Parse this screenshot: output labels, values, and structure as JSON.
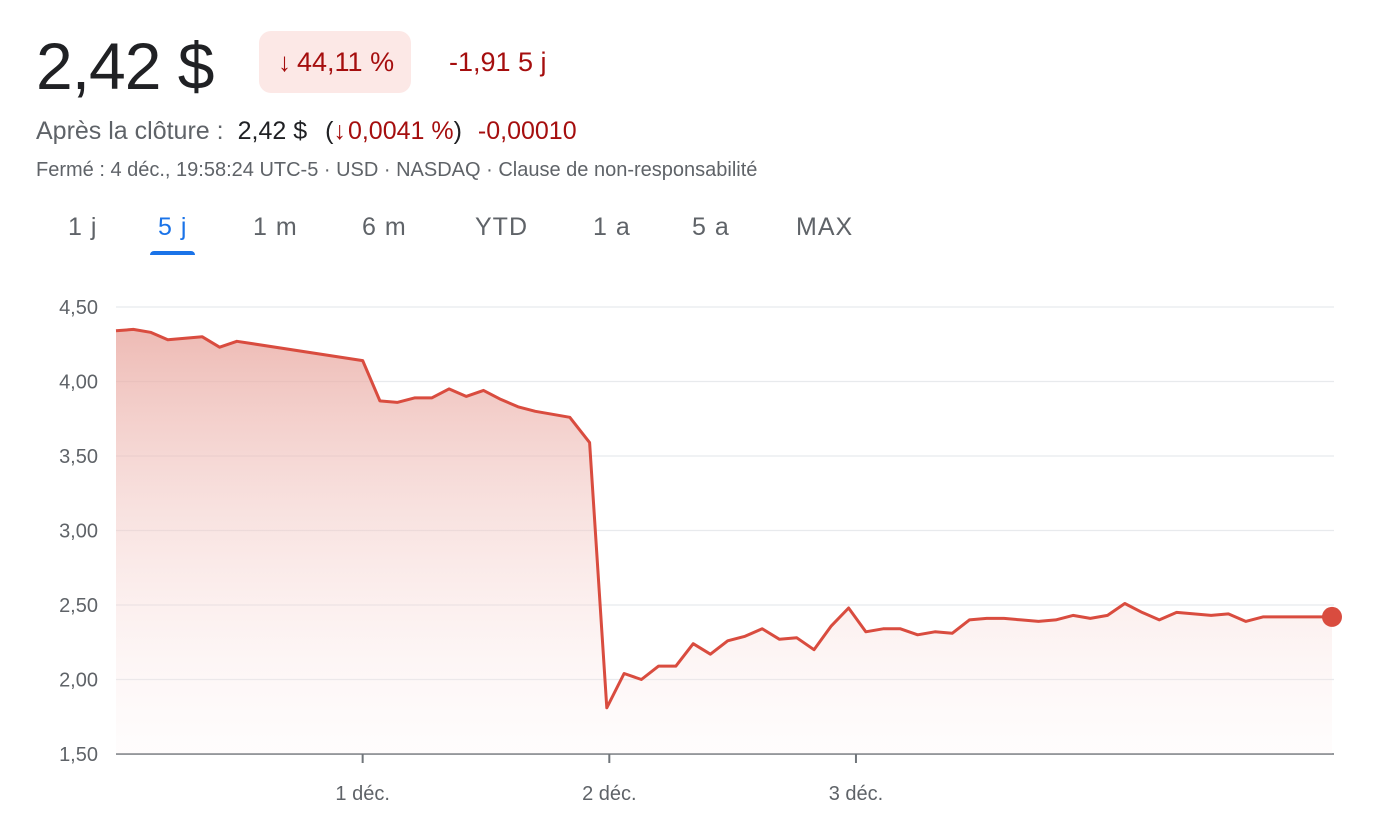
{
  "quote": {
    "price": "2,42 $",
    "change_arrow": "↓",
    "change_pct": "44,11 %",
    "change_abs": "-1,91 5 j",
    "after_label": "Après la clôture :",
    "after_price": "2,42 $",
    "after_paren_open": "(",
    "after_arrow": "↓",
    "after_pct": "0,0041 %",
    "after_paren_close": ")",
    "after_abs": "-0,00010",
    "meta": "Fermé : 4 déc., 19:58:24 UTC-5 · USD · NASDAQ · Clause de non-responsabilité"
  },
  "tabs": [
    {
      "label": "1 j",
      "active": false
    },
    {
      "label": "5 j",
      "active": true
    },
    {
      "label": "1 m",
      "active": false
    },
    {
      "label": "6 m",
      "active": false
    },
    {
      "label": "YTD",
      "active": false
    },
    {
      "label": "1 a",
      "active": false
    },
    {
      "label": "5 a",
      "active": false
    },
    {
      "label": "MAX",
      "active": false
    }
  ],
  "colors": {
    "line": "#d94c3f",
    "fill_top": "#e8a49c",
    "negative_text": "#a50e0e",
    "badge_bg": "#fce8e6",
    "active_tab": "#1a73e8"
  },
  "chart_data": {
    "type": "area",
    "y_ticks": [
      "4,50",
      "4,00",
      "3,50",
      "3,00",
      "2,50",
      "2,00",
      "1,50"
    ],
    "y_tick_values": [
      4.5,
      4.0,
      3.5,
      3.0,
      2.5,
      2.0,
      1.5
    ],
    "ylim": [
      1.5,
      4.5
    ],
    "x_tick_labels": [
      "1 déc.",
      "2 déc.",
      "3 déc."
    ],
    "x_tick_positions": [
      10,
      20,
      30
    ],
    "xlim": [
      0,
      49.3
    ],
    "grid": true,
    "series": [
      {
        "x": [
          0,
          0.7,
          1.4,
          2.1,
          2.8,
          3.5,
          4.2,
          4.9,
          10,
          10.7,
          11.4,
          12.1,
          12.8,
          13.5,
          14.2,
          14.9,
          15.6,
          16.3,
          17,
          17.7,
          18.4,
          19.2,
          19.9,
          20.6,
          21.3,
          22,
          22.7,
          23.4,
          24.1,
          24.8,
          25.5,
          26.2,
          26.9,
          27.6,
          28.3,
          29,
          29.7,
          30.4,
          31.1,
          31.8,
          32.5,
          33.2,
          33.9,
          34.6,
          35.3,
          36,
          36.7,
          37.4,
          38.1,
          38.8,
          39.5,
          40.2,
          40.9,
          41.6,
          42.3,
          43,
          43.7,
          44.4,
          45.1,
          45.8,
          46.5,
          47.2,
          47.9,
          48.6,
          49.3
        ],
        "y": [
          4.34,
          4.35,
          4.33,
          4.28,
          4.29,
          4.3,
          4.23,
          4.27,
          4.14,
          3.87,
          3.86,
          3.89,
          3.89,
          3.95,
          3.9,
          3.94,
          3.88,
          3.83,
          3.8,
          3.78,
          3.76,
          3.59,
          1.81,
          2.04,
          2.0,
          2.09,
          2.09,
          2.24,
          2.17,
          2.26,
          2.29,
          2.34,
          2.27,
          2.28,
          2.2,
          2.36,
          2.48,
          2.32,
          2.34,
          2.34,
          2.3,
          2.32,
          2.31,
          2.4,
          2.41,
          2.41,
          2.4,
          2.39,
          2.4,
          2.43,
          2.41,
          2.43,
          2.51,
          2.45,
          2.4,
          2.45,
          2.44,
          2.43,
          2.44,
          2.39,
          2.42,
          2.42,
          2.42,
          2.42,
          2.42
        ]
      }
    ]
  }
}
